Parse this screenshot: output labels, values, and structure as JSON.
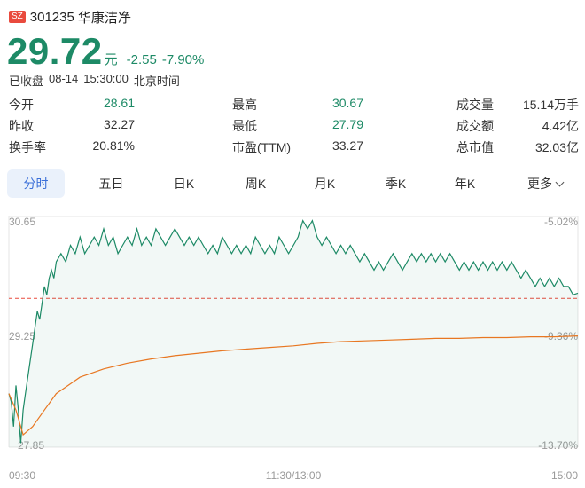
{
  "stock": {
    "market": "SZ",
    "code": "301235",
    "name": "华康洁净",
    "price": "29.72",
    "unit": "元",
    "change": "-2.55",
    "change_pct": "-7.90%",
    "status": "已收盘",
    "date": "08-14",
    "time": "15:30:00",
    "timezone": "北京时间"
  },
  "stats": [
    [
      {
        "label": "今开",
        "value": "28.61"
      },
      {
        "label": "最高",
        "value": "30.67"
      },
      {
        "label": "成交量",
        "value": "15.14万手"
      }
    ],
    [
      {
        "label": "昨收",
        "value": "32.27"
      },
      {
        "label": "最低",
        "value": "27.79"
      },
      {
        "label": "成交额",
        "value": "4.42亿"
      }
    ],
    [
      {
        "label": "换手率",
        "value": "20.81%"
      },
      {
        "label": "市盈(TTM)",
        "value": "33.27"
      },
      {
        "label": "总市值",
        "value": "32.03亿"
      }
    ]
  ],
  "tabs": [
    "分时",
    "五日",
    "日K",
    "周K",
    "月K",
    "季K",
    "年K",
    "更多"
  ],
  "active_tab": "分时",
  "colors": {
    "down": "#1d8a66",
    "avg_line": "#e87722",
    "prev_close_line": "#e94a3d",
    "active_tab_bg": "#eaf1fb",
    "active_tab_text": "#3b6fd8"
  },
  "chart_data": {
    "type": "line",
    "prev_close": 32.27,
    "ylim": [
      27.85,
      30.65
    ],
    "y_left_ticks": [
      "30.65",
      "29.25",
      "27.85"
    ],
    "y_right_ticks": [
      "-5.02%",
      "-9.36%",
      "-13.70%"
    ],
    "x_tick_labels": [
      "09:30",
      "11:30/13:00",
      "15:00"
    ],
    "total_minutes": 240,
    "series": [
      {
        "values": [
          [
            0,
            28.5
          ],
          [
            1,
            28.4
          ],
          [
            2,
            28.1
          ],
          [
            3,
            28.6
          ],
          [
            4,
            28.3
          ],
          [
            5,
            27.9
          ],
          [
            6,
            28.3
          ],
          [
            7,
            28.5
          ],
          [
            8,
            28.7
          ],
          [
            9,
            28.9
          ],
          [
            10,
            29.1
          ],
          [
            11,
            29.3
          ],
          [
            12,
            29.5
          ],
          [
            13,
            29.4
          ],
          [
            14,
            29.6
          ],
          [
            15,
            29.8
          ],
          [
            16,
            29.7
          ],
          [
            17,
            29.9
          ],
          [
            18,
            30.0
          ],
          [
            19,
            29.9
          ],
          [
            20,
            30.1
          ],
          [
            22,
            30.2
          ],
          [
            24,
            30.1
          ],
          [
            26,
            30.3
          ],
          [
            28,
            30.2
          ],
          [
            30,
            30.4
          ],
          [
            32,
            30.2
          ],
          [
            34,
            30.3
          ],
          [
            36,
            30.4
          ],
          [
            38,
            30.3
          ],
          [
            40,
            30.5
          ],
          [
            42,
            30.3
          ],
          [
            44,
            30.4
          ],
          [
            46,
            30.2
          ],
          [
            48,
            30.3
          ],
          [
            50,
            30.4
          ],
          [
            52,
            30.3
          ],
          [
            54,
            30.5
          ],
          [
            56,
            30.3
          ],
          [
            58,
            30.4
          ],
          [
            60,
            30.3
          ],
          [
            62,
            30.5
          ],
          [
            64,
            30.4
          ],
          [
            66,
            30.3
          ],
          [
            68,
            30.4
          ],
          [
            70,
            30.5
          ],
          [
            72,
            30.4
          ],
          [
            74,
            30.3
          ],
          [
            76,
            30.4
          ],
          [
            78,
            30.3
          ],
          [
            80,
            30.4
          ],
          [
            82,
            30.3
          ],
          [
            84,
            30.2
          ],
          [
            86,
            30.3
          ],
          [
            88,
            30.2
          ],
          [
            90,
            30.4
          ],
          [
            92,
            30.3
          ],
          [
            94,
            30.2
          ],
          [
            96,
            30.3
          ],
          [
            98,
            30.2
          ],
          [
            100,
            30.3
          ],
          [
            102,
            30.2
          ],
          [
            104,
            30.4
          ],
          [
            106,
            30.3
          ],
          [
            108,
            30.2
          ],
          [
            110,
            30.3
          ],
          [
            112,
            30.2
          ],
          [
            114,
            30.4
          ],
          [
            116,
            30.3
          ],
          [
            118,
            30.2
          ],
          [
            120,
            30.3
          ],
          [
            122,
            30.4
          ],
          [
            124,
            30.6
          ],
          [
            126,
            30.5
          ],
          [
            128,
            30.6
          ],
          [
            130,
            30.4
          ],
          [
            132,
            30.3
          ],
          [
            134,
            30.4
          ],
          [
            136,
            30.3
          ],
          [
            138,
            30.2
          ],
          [
            140,
            30.3
          ],
          [
            142,
            30.2
          ],
          [
            144,
            30.3
          ],
          [
            146,
            30.2
          ],
          [
            148,
            30.1
          ],
          [
            150,
            30.2
          ],
          [
            152,
            30.1
          ],
          [
            154,
            30.0
          ],
          [
            156,
            30.1
          ],
          [
            158,
            30.0
          ],
          [
            160,
            30.1
          ],
          [
            162,
            30.2
          ],
          [
            164,
            30.1
          ],
          [
            166,
            30.0
          ],
          [
            168,
            30.1
          ],
          [
            170,
            30.2
          ],
          [
            172,
            30.1
          ],
          [
            174,
            30.2
          ],
          [
            176,
            30.1
          ],
          [
            178,
            30.2
          ],
          [
            180,
            30.1
          ],
          [
            182,
            30.2
          ],
          [
            184,
            30.1
          ],
          [
            186,
            30.2
          ],
          [
            188,
            30.1
          ],
          [
            190,
            30.0
          ],
          [
            192,
            30.1
          ],
          [
            194,
            30.0
          ],
          [
            196,
            30.1
          ],
          [
            198,
            30.0
          ],
          [
            200,
            30.1
          ],
          [
            202,
            30.0
          ],
          [
            204,
            30.1
          ],
          [
            206,
            30.0
          ],
          [
            208,
            30.1
          ],
          [
            210,
            30.0
          ],
          [
            212,
            30.1
          ],
          [
            214,
            30.0
          ],
          [
            216,
            29.9
          ],
          [
            218,
            30.0
          ],
          [
            220,
            29.9
          ],
          [
            222,
            29.8
          ],
          [
            224,
            29.9
          ],
          [
            226,
            29.8
          ],
          [
            228,
            29.9
          ],
          [
            230,
            29.8
          ],
          [
            232,
            29.9
          ],
          [
            234,
            29.8
          ],
          [
            236,
            29.8
          ],
          [
            238,
            29.7
          ],
          [
            240,
            29.72
          ]
        ]
      },
      {
        "values": [
          [
            0,
            28.5
          ],
          [
            3,
            28.3
          ],
          [
            6,
            28.0
          ],
          [
            10,
            28.1
          ],
          [
            15,
            28.3
          ],
          [
            20,
            28.5
          ],
          [
            25,
            28.6
          ],
          [
            30,
            28.7
          ],
          [
            40,
            28.8
          ],
          [
            50,
            28.87
          ],
          [
            60,
            28.92
          ],
          [
            70,
            28.96
          ],
          [
            80,
            28.99
          ],
          [
            90,
            29.02
          ],
          [
            100,
            29.04
          ],
          [
            110,
            29.06
          ],
          [
            120,
            29.08
          ],
          [
            130,
            29.11
          ],
          [
            140,
            29.13
          ],
          [
            150,
            29.14
          ],
          [
            160,
            29.15
          ],
          [
            170,
            29.16
          ],
          [
            180,
            29.17
          ],
          [
            190,
            29.17
          ],
          [
            200,
            29.18
          ],
          [
            210,
            29.18
          ],
          [
            220,
            29.19
          ],
          [
            230,
            29.19
          ],
          [
            240,
            29.2
          ]
        ]
      }
    ]
  }
}
